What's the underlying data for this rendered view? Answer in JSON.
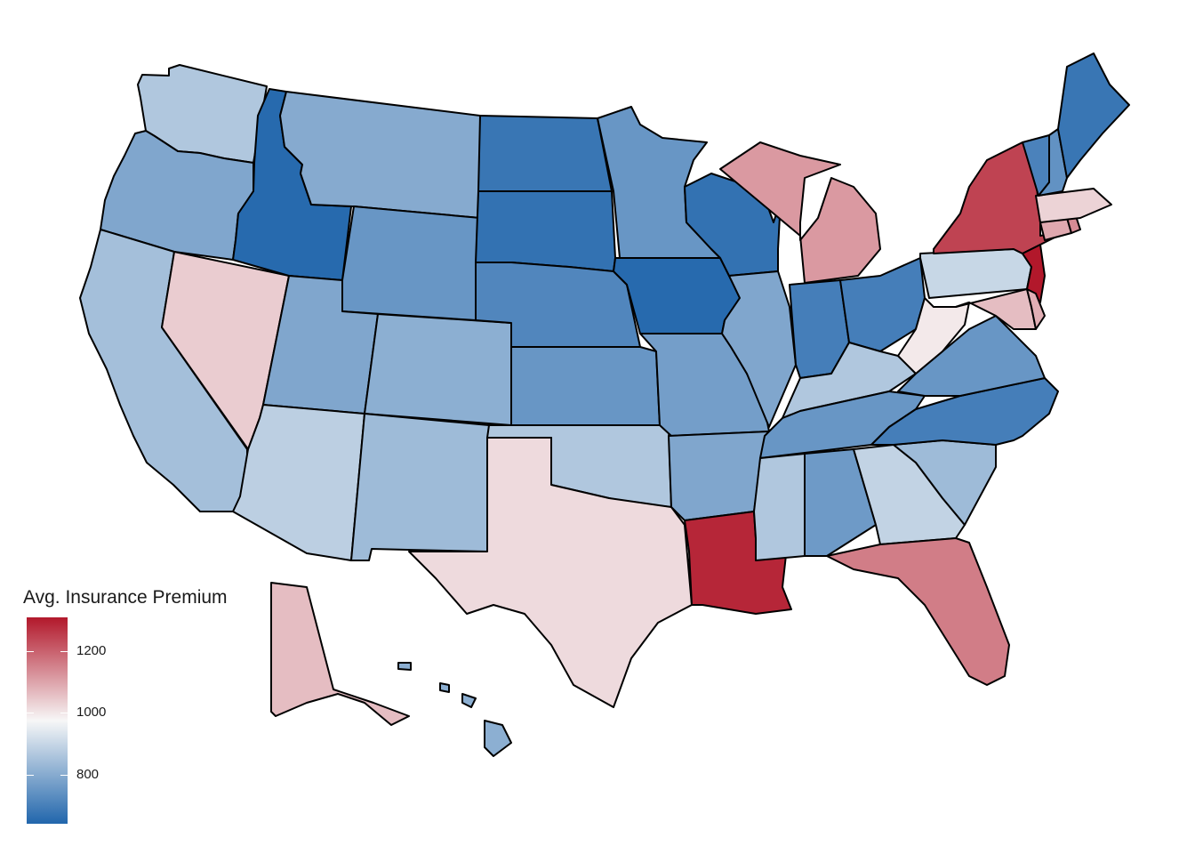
{
  "map": {
    "legend_title": "Avg. Insurance Premium",
    "legend_ticks": [
      {
        "label": "1200",
        "value": 1200
      },
      {
        "label": "1000",
        "value": 1000
      },
      {
        "label": "800",
        "value": 800
      }
    ],
    "scale": {
      "min": 640,
      "max": 1310,
      "colors": [
        "#2166ac",
        "#f7f7f7",
        "#b2182b"
      ]
    }
  },
  "chart_data": {
    "type": "choropleth",
    "title": "",
    "legend_title": "Avg. Insurance Premium",
    "legend_placement": "bottom-left",
    "color_scale": {
      "min": 640,
      "max": 1310,
      "palette": "RdBu (diverging)"
    },
    "values": {
      "WA": 880,
      "OR": 800,
      "CA": 860,
      "NV": 1060,
      "ID": 650,
      "MT": 810,
      "WY": 760,
      "UT": 800,
      "CO": 820,
      "AZ": 900,
      "NM": 850,
      "ND": 680,
      "SD": 670,
      "NE": 720,
      "KS": 760,
      "OK": 880,
      "TX": 1040,
      "MN": 760,
      "IA": 650,
      "MO": 780,
      "AR": 800,
      "LA": 1290,
      "WI": 670,
      "IL": 800,
      "IN": 700,
      "OH": 700,
      "MI": 1130,
      "KY": 880,
      "TN": 760,
      "MS": 880,
      "AL": 770,
      "GA": 910,
      "FL": 1170,
      "SC": 850,
      "NC": 700,
      "VA": 760,
      "WV": 1020,
      "PA": 920,
      "NY": 1250,
      "NJ": 1310,
      "DE": 1100,
      "MD": 1080,
      "CT": 1110,
      "RI": 1150,
      "MA": 1050,
      "VT": 710,
      "NH": 750,
      "ME": 680,
      "AK": 1080,
      "HI": 820
    }
  }
}
